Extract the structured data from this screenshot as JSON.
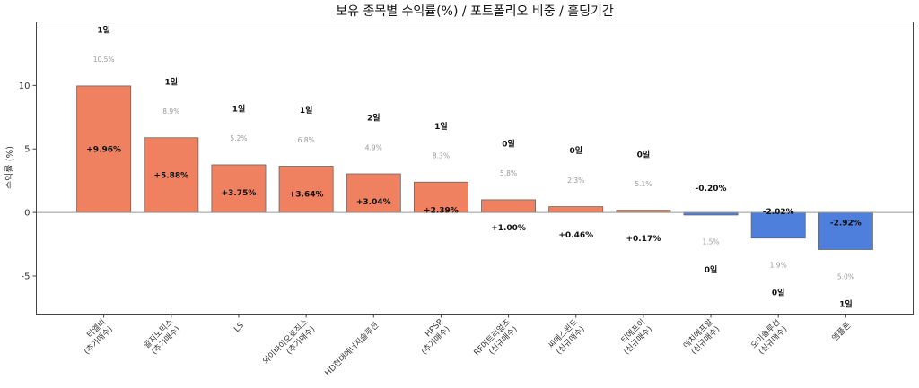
{
  "chart_data": {
    "type": "bar",
    "title": "보유 종목별 수익률(%) / 포트폴리오 비중 / 홀딩기간",
    "xlabel": "",
    "ylabel": "수익률 (%)",
    "ylim": [
      -8,
      15
    ],
    "yticks": [
      -5,
      0,
      5,
      10
    ],
    "grid": false,
    "categories": [
      [
        "티엘비",
        "(추가매수)"
      ],
      [
        "알지노믹스",
        "(추가매수)"
      ],
      [
        "LS"
      ],
      [
        "와이바이오로직스",
        "(추가매수)"
      ],
      [
        "HD현대에너지솔루션"
      ],
      [
        "HPSP",
        "(추가매수)"
      ],
      [
        "RF머트리얼즈",
        "(신규매수)"
      ],
      [
        "씨에스윈드",
        "(신규매수)"
      ],
      [
        "티에프이",
        "(신규매수)"
      ],
      [
        "에치에프알",
        "(신규매수)"
      ],
      [
        "오이솔루션",
        "(신규매수)"
      ],
      [
        "엠플론"
      ]
    ],
    "values": [
      9.96,
      5.88,
      3.75,
      3.64,
      3.04,
      2.39,
      1.0,
      0.46,
      0.17,
      -0.2,
      -2.02,
      -2.92
    ],
    "return_labels": [
      "+9.96%",
      "+5.88%",
      "+3.75%",
      "+3.64%",
      "+3.04%",
      "+2.39%",
      "+1.00%",
      "+0.46%",
      "+0.17%",
      "-0.20%",
      "-2.02%",
      "-2.92%"
    ],
    "weight_labels": [
      "10.5%",
      "8.9%",
      "5.2%",
      "6.8%",
      "4.9%",
      "8.3%",
      "5.8%",
      "2.3%",
      "5.1%",
      "1.5%",
      "1.9%",
      "5.0%"
    ],
    "holding_labels": [
      "1일",
      "1일",
      "1일",
      "1일",
      "2일",
      "1일",
      "0일",
      "0일",
      "0일",
      "0일",
      "0일",
      "1일"
    ],
    "colors": {
      "positive": "#ef8060",
      "negative": "#4f7fdc",
      "edge": "#666666",
      "zero_line": "#999999"
    }
  }
}
